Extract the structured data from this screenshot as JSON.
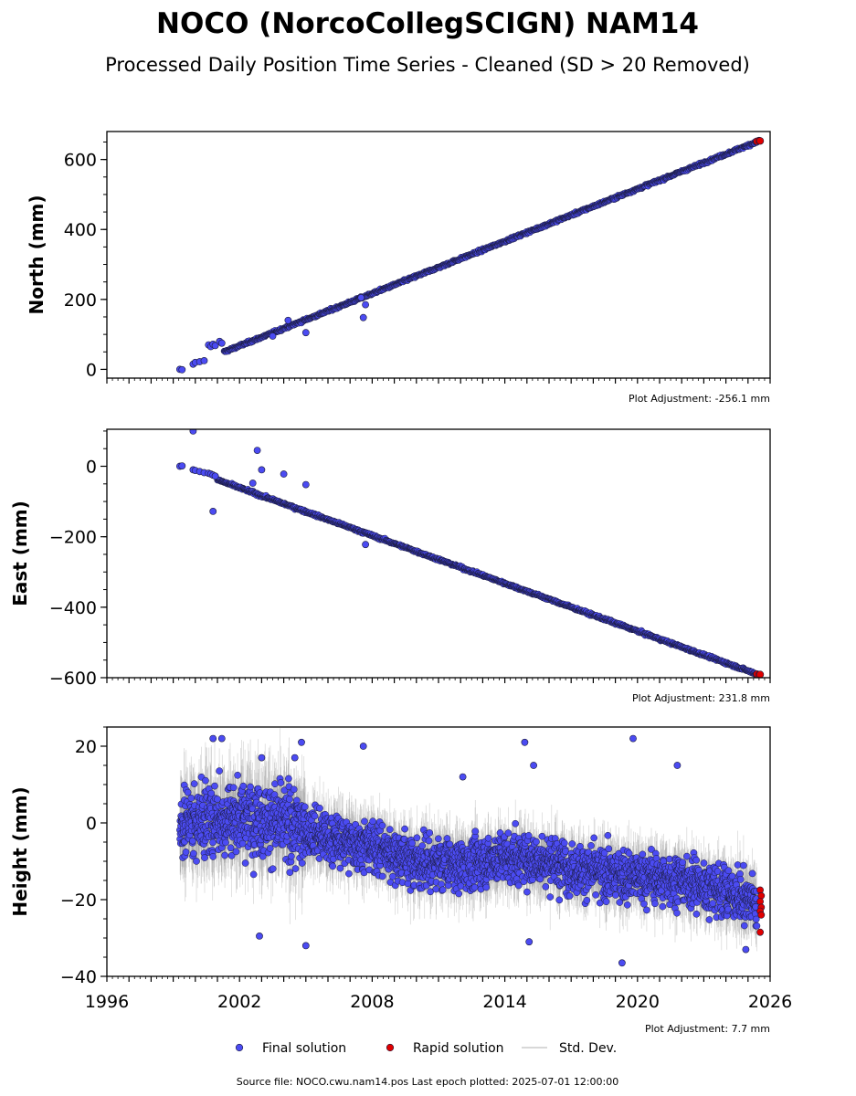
{
  "title": "NOCO (NorcoCollegSCIGN) NAM14",
  "subtitle": "Processed Daily Position Time Series - Cleaned (SD > 20 Removed)",
  "source_text": "Source file: NOCO.cwu.nam14.pos  Last epoch plotted: 2025-07-01 12:00:00",
  "legend": [
    {
      "label": "Final solution",
      "kind": "dot",
      "color": "#4b4bf2"
    },
    {
      "label": "Rapid solution",
      "kind": "dot",
      "color": "#e00000"
    },
    {
      "label": "Std. Dev.",
      "kind": "line",
      "color": "#cccccc"
    }
  ],
  "colors": {
    "final": "#4b4bf2",
    "rapid": "#e00000",
    "edge": "#1a1a3a",
    "stddev": "#888888"
  },
  "chart_data": [
    {
      "type": "scatter",
      "name": "north",
      "ylabel": "North (mm)",
      "adjustment_label": "Plot Adjustment: -256.1 mm",
      "xlim": [
        1996,
        2026
      ],
      "ylim": [
        -25,
        680
      ],
      "yticks": [
        0,
        200,
        400,
        600
      ],
      "ytick_labels": [
        "0",
        "200",
        "400",
        "600"
      ],
      "final_trend": [
        [
          1999.3,
          0
        ],
        [
          2025.5,
          653
        ]
      ],
      "early_points": [
        [
          1999.3,
          0
        ],
        [
          1999.4,
          -1
        ],
        [
          1999.9,
          15
        ],
        [
          2000.0,
          20
        ],
        [
          2000.2,
          22
        ],
        [
          2000.4,
          25
        ],
        [
          2000.6,
          70
        ],
        [
          2000.7,
          65
        ],
        [
          2000.8,
          72
        ],
        [
          2000.9,
          68
        ],
        [
          2001.1,
          80
        ],
        [
          2001.2,
          75
        ]
      ],
      "outliers": [
        [
          2003.5,
          95
        ],
        [
          2005.0,
          105
        ],
        [
          2007.6,
          148
        ],
        [
          2007.5,
          205
        ],
        [
          2007.7,
          185
        ],
        [
          2004.2,
          140
        ]
      ],
      "rapid": [
        [
          2025.4,
          652
        ],
        [
          2025.5,
          654
        ],
        [
          2025.55,
          653
        ]
      ]
    },
    {
      "type": "scatter",
      "name": "east",
      "ylabel": "East (mm)",
      "adjustment_label": "Plot Adjustment: 231.8 mm",
      "xlim": [
        1996,
        2026
      ],
      "ylim": [
        -600,
        105
      ],
      "yticks": [
        -600,
        -400,
        -200,
        0
      ],
      "ytick_labels": [
        "−600",
        "−400",
        "−200",
        "0"
      ],
      "final_trend": [
        [
          1999.3,
          0
        ],
        [
          2025.5,
          -592
        ]
      ],
      "early_points": [
        [
          1999.3,
          0
        ],
        [
          1999.4,
          1
        ],
        [
          1999.9,
          -10
        ],
        [
          2000.0,
          -12
        ],
        [
          2000.2,
          -15
        ],
        [
          2000.4,
          -18
        ],
        [
          2000.6,
          -20
        ],
        [
          2000.7,
          -22
        ],
        [
          2000.8,
          -25
        ],
        [
          2000.9,
          -28
        ]
      ],
      "outliers": [
        [
          1999.9,
          100
        ],
        [
          2002.8,
          45
        ],
        [
          2003.0,
          -10
        ],
        [
          2004.0,
          -22
        ],
        [
          2005.0,
          -52
        ],
        [
          2000.8,
          -128
        ],
        [
          2002.6,
          -48
        ],
        [
          2007.7,
          -222
        ]
      ],
      "rapid": [
        [
          2025.4,
          -590
        ],
        [
          2025.5,
          -592
        ],
        [
          2025.55,
          -591
        ]
      ]
    },
    {
      "type": "scatter",
      "name": "height",
      "ylabel": "Height (mm)",
      "adjustment_label": "Plot Adjustment: 7.7 mm",
      "xlim": [
        1996,
        2026
      ],
      "ylim": [
        -40,
        25
      ],
      "yticks": [
        -40,
        -20,
        0,
        20
      ],
      "ytick_labels": [
        "−40",
        "−20",
        "0",
        "20"
      ],
      "xticks": [
        1996,
        2002,
        2008,
        2014,
        2020,
        2026
      ],
      "xtick_labels": [
        "1996",
        "2002",
        "2008",
        "2014",
        "2020",
        "2026"
      ],
      "trend": [
        [
          1999.3,
          0
        ],
        [
          2002.5,
          2
        ],
        [
          2004.0,
          0
        ],
        [
          2006.0,
          -4
        ],
        [
          2008.0,
          -6
        ],
        [
          2010.0,
          -10
        ],
        [
          2012.0,
          -11
        ],
        [
          2014.0,
          -9
        ],
        [
          2016.0,
          -10
        ],
        [
          2018.0,
          -13
        ],
        [
          2020.0,
          -14
        ],
        [
          2022.0,
          -15
        ],
        [
          2024.0,
          -18
        ],
        [
          2025.5,
          -21
        ]
      ],
      "outliers": [
        [
          2000.8,
          22
        ],
        [
          2001.2,
          22
        ],
        [
          2004.8,
          21
        ],
        [
          2007.6,
          20
        ],
        [
          2019.8,
          22
        ],
        [
          2014.9,
          21
        ],
        [
          2021.8,
          15
        ],
        [
          2015.3,
          15
        ],
        [
          2002.9,
          -29.5
        ],
        [
          2005.0,
          -32
        ],
        [
          2015.1,
          -31
        ],
        [
          2019.3,
          -36.5
        ],
        [
          2024.9,
          -33
        ],
        [
          2003.0,
          17
        ],
        [
          2004.5,
          17
        ],
        [
          2012.1,
          12
        ]
      ],
      "rapid": [
        [
          2025.55,
          -17.5
        ],
        [
          2025.6,
          -19
        ],
        [
          2025.55,
          -20.5
        ],
        [
          2025.6,
          -22
        ],
        [
          2025.55,
          -23
        ],
        [
          2025.6,
          -24
        ],
        [
          2025.55,
          -28.5
        ]
      ]
    }
  ]
}
